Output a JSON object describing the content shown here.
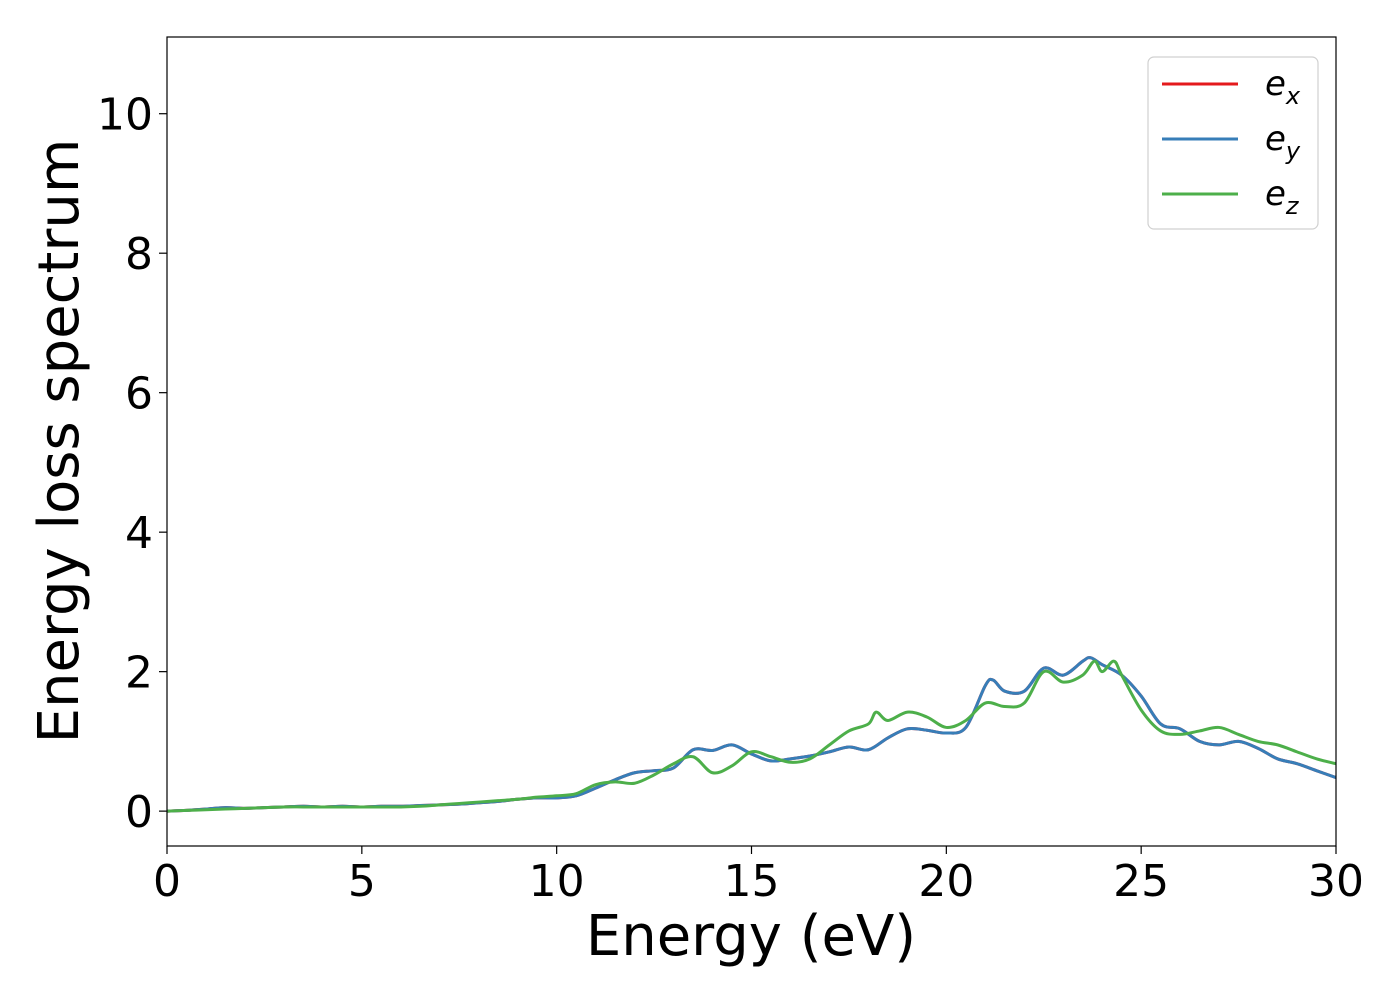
{
  "chart_data": {
    "type": "line",
    "title": "",
    "xlabel": "Energy (eV)",
    "ylabel": "Energy loss spectrum",
    "xlim": [
      0,
      30
    ],
    "ylim": [
      -0.5,
      11.1
    ],
    "xticks": [
      0,
      5,
      10,
      15,
      20,
      25,
      30
    ],
    "yticks": [
      0,
      2,
      4,
      6,
      8,
      10
    ],
    "grid": false,
    "legend_position": "top-right",
    "series": [
      {
        "name": "e",
        "subscript": "x",
        "color": "#e41a1c",
        "x": [
          0,
          0.5,
          1,
          1.5,
          2,
          2.5,
          3,
          3.5,
          4,
          4.5,
          5,
          5.5,
          6,
          6.5,
          7,
          7.5,
          8,
          8.5,
          9,
          9.5,
          10,
          10.5,
          11,
          11.5,
          12,
          12.5,
          13,
          13.5,
          14,
          14.5,
          15,
          15.5,
          16,
          16.5,
          17,
          17.5,
          18,
          18.5,
          19,
          19.5,
          20,
          20.5,
          21,
          21.2,
          21.5,
          22,
          22.5,
          23,
          23.5,
          23.7,
          24,
          24.5,
          25,
          25.5,
          26,
          26.5,
          27,
          27.5,
          28,
          28.5,
          29,
          29.5,
          30
        ],
        "y": [
          0.0,
          0.01,
          0.03,
          0.05,
          0.04,
          0.05,
          0.06,
          0.07,
          0.06,
          0.07,
          0.06,
          0.07,
          0.07,
          0.08,
          0.09,
          0.1,
          0.12,
          0.14,
          0.17,
          0.19,
          0.19,
          0.22,
          0.33,
          0.45,
          0.55,
          0.58,
          0.62,
          0.88,
          0.87,
          0.95,
          0.82,
          0.72,
          0.75,
          0.79,
          0.85,
          0.92,
          0.88,
          1.05,
          1.18,
          1.16,
          1.12,
          1.2,
          1.8,
          1.88,
          1.72,
          1.72,
          2.05,
          1.95,
          2.15,
          2.2,
          2.1,
          1.95,
          1.65,
          1.25,
          1.18,
          1.0,
          0.95,
          1.0,
          0.9,
          0.75,
          0.68,
          0.58,
          0.48
        ]
      },
      {
        "name": "e",
        "subscript": "y",
        "color": "#377eb8",
        "x": [
          0,
          0.5,
          1,
          1.5,
          2,
          2.5,
          3,
          3.5,
          4,
          4.5,
          5,
          5.5,
          6,
          6.5,
          7,
          7.5,
          8,
          8.5,
          9,
          9.5,
          10,
          10.5,
          11,
          11.5,
          12,
          12.5,
          13,
          13.5,
          14,
          14.5,
          15,
          15.5,
          16,
          16.5,
          17,
          17.5,
          18,
          18.5,
          19,
          19.5,
          20,
          20.5,
          21,
          21.2,
          21.5,
          22,
          22.5,
          23,
          23.5,
          23.7,
          24,
          24.5,
          25,
          25.5,
          26,
          26.5,
          27,
          27.5,
          28,
          28.5,
          29,
          29.5,
          30
        ],
        "y": [
          0.0,
          0.01,
          0.03,
          0.05,
          0.04,
          0.05,
          0.06,
          0.07,
          0.06,
          0.07,
          0.06,
          0.07,
          0.07,
          0.08,
          0.09,
          0.1,
          0.12,
          0.14,
          0.17,
          0.19,
          0.19,
          0.22,
          0.33,
          0.45,
          0.55,
          0.58,
          0.62,
          0.88,
          0.87,
          0.95,
          0.82,
          0.72,
          0.75,
          0.79,
          0.85,
          0.92,
          0.88,
          1.05,
          1.18,
          1.16,
          1.12,
          1.2,
          1.8,
          1.88,
          1.72,
          1.72,
          2.05,
          1.95,
          2.15,
          2.2,
          2.1,
          1.95,
          1.65,
          1.25,
          1.18,
          1.0,
          0.95,
          1.0,
          0.9,
          0.75,
          0.68,
          0.58,
          0.48
        ]
      },
      {
        "name": "e",
        "subscript": "z",
        "color": "#4daf4a",
        "x": [
          0,
          0.5,
          1,
          1.5,
          2,
          2.5,
          3,
          3.5,
          4,
          4.5,
          5,
          5.5,
          6,
          6.5,
          7,
          7.5,
          8,
          8.5,
          9,
          9.5,
          10,
          10.5,
          11,
          11.5,
          12,
          12.5,
          13,
          13.5,
          14,
          14.5,
          15,
          15.5,
          16,
          16.5,
          17,
          17.5,
          18,
          18.2,
          18.5,
          19,
          19.5,
          20,
          20.5,
          21,
          21.5,
          22,
          22.5,
          23,
          23.5,
          23.8,
          24,
          24.3,
          24.5,
          25,
          25.5,
          26,
          26.5,
          27,
          27.5,
          28,
          28.5,
          29,
          29.5,
          30
        ],
        "y": [
          0.0,
          0.01,
          0.02,
          0.03,
          0.04,
          0.05,
          0.06,
          0.06,
          0.06,
          0.06,
          0.06,
          0.06,
          0.06,
          0.07,
          0.09,
          0.11,
          0.13,
          0.15,
          0.17,
          0.2,
          0.22,
          0.25,
          0.38,
          0.42,
          0.4,
          0.52,
          0.68,
          0.78,
          0.55,
          0.65,
          0.85,
          0.78,
          0.7,
          0.75,
          0.95,
          1.15,
          1.25,
          1.42,
          1.3,
          1.42,
          1.35,
          1.2,
          1.3,
          1.55,
          1.5,
          1.55,
          2.0,
          1.85,
          1.95,
          2.15,
          2.0,
          2.15,
          1.95,
          1.45,
          1.15,
          1.1,
          1.15,
          1.2,
          1.1,
          1.0,
          0.95,
          0.85,
          0.75,
          0.68
        ]
      }
    ]
  }
}
